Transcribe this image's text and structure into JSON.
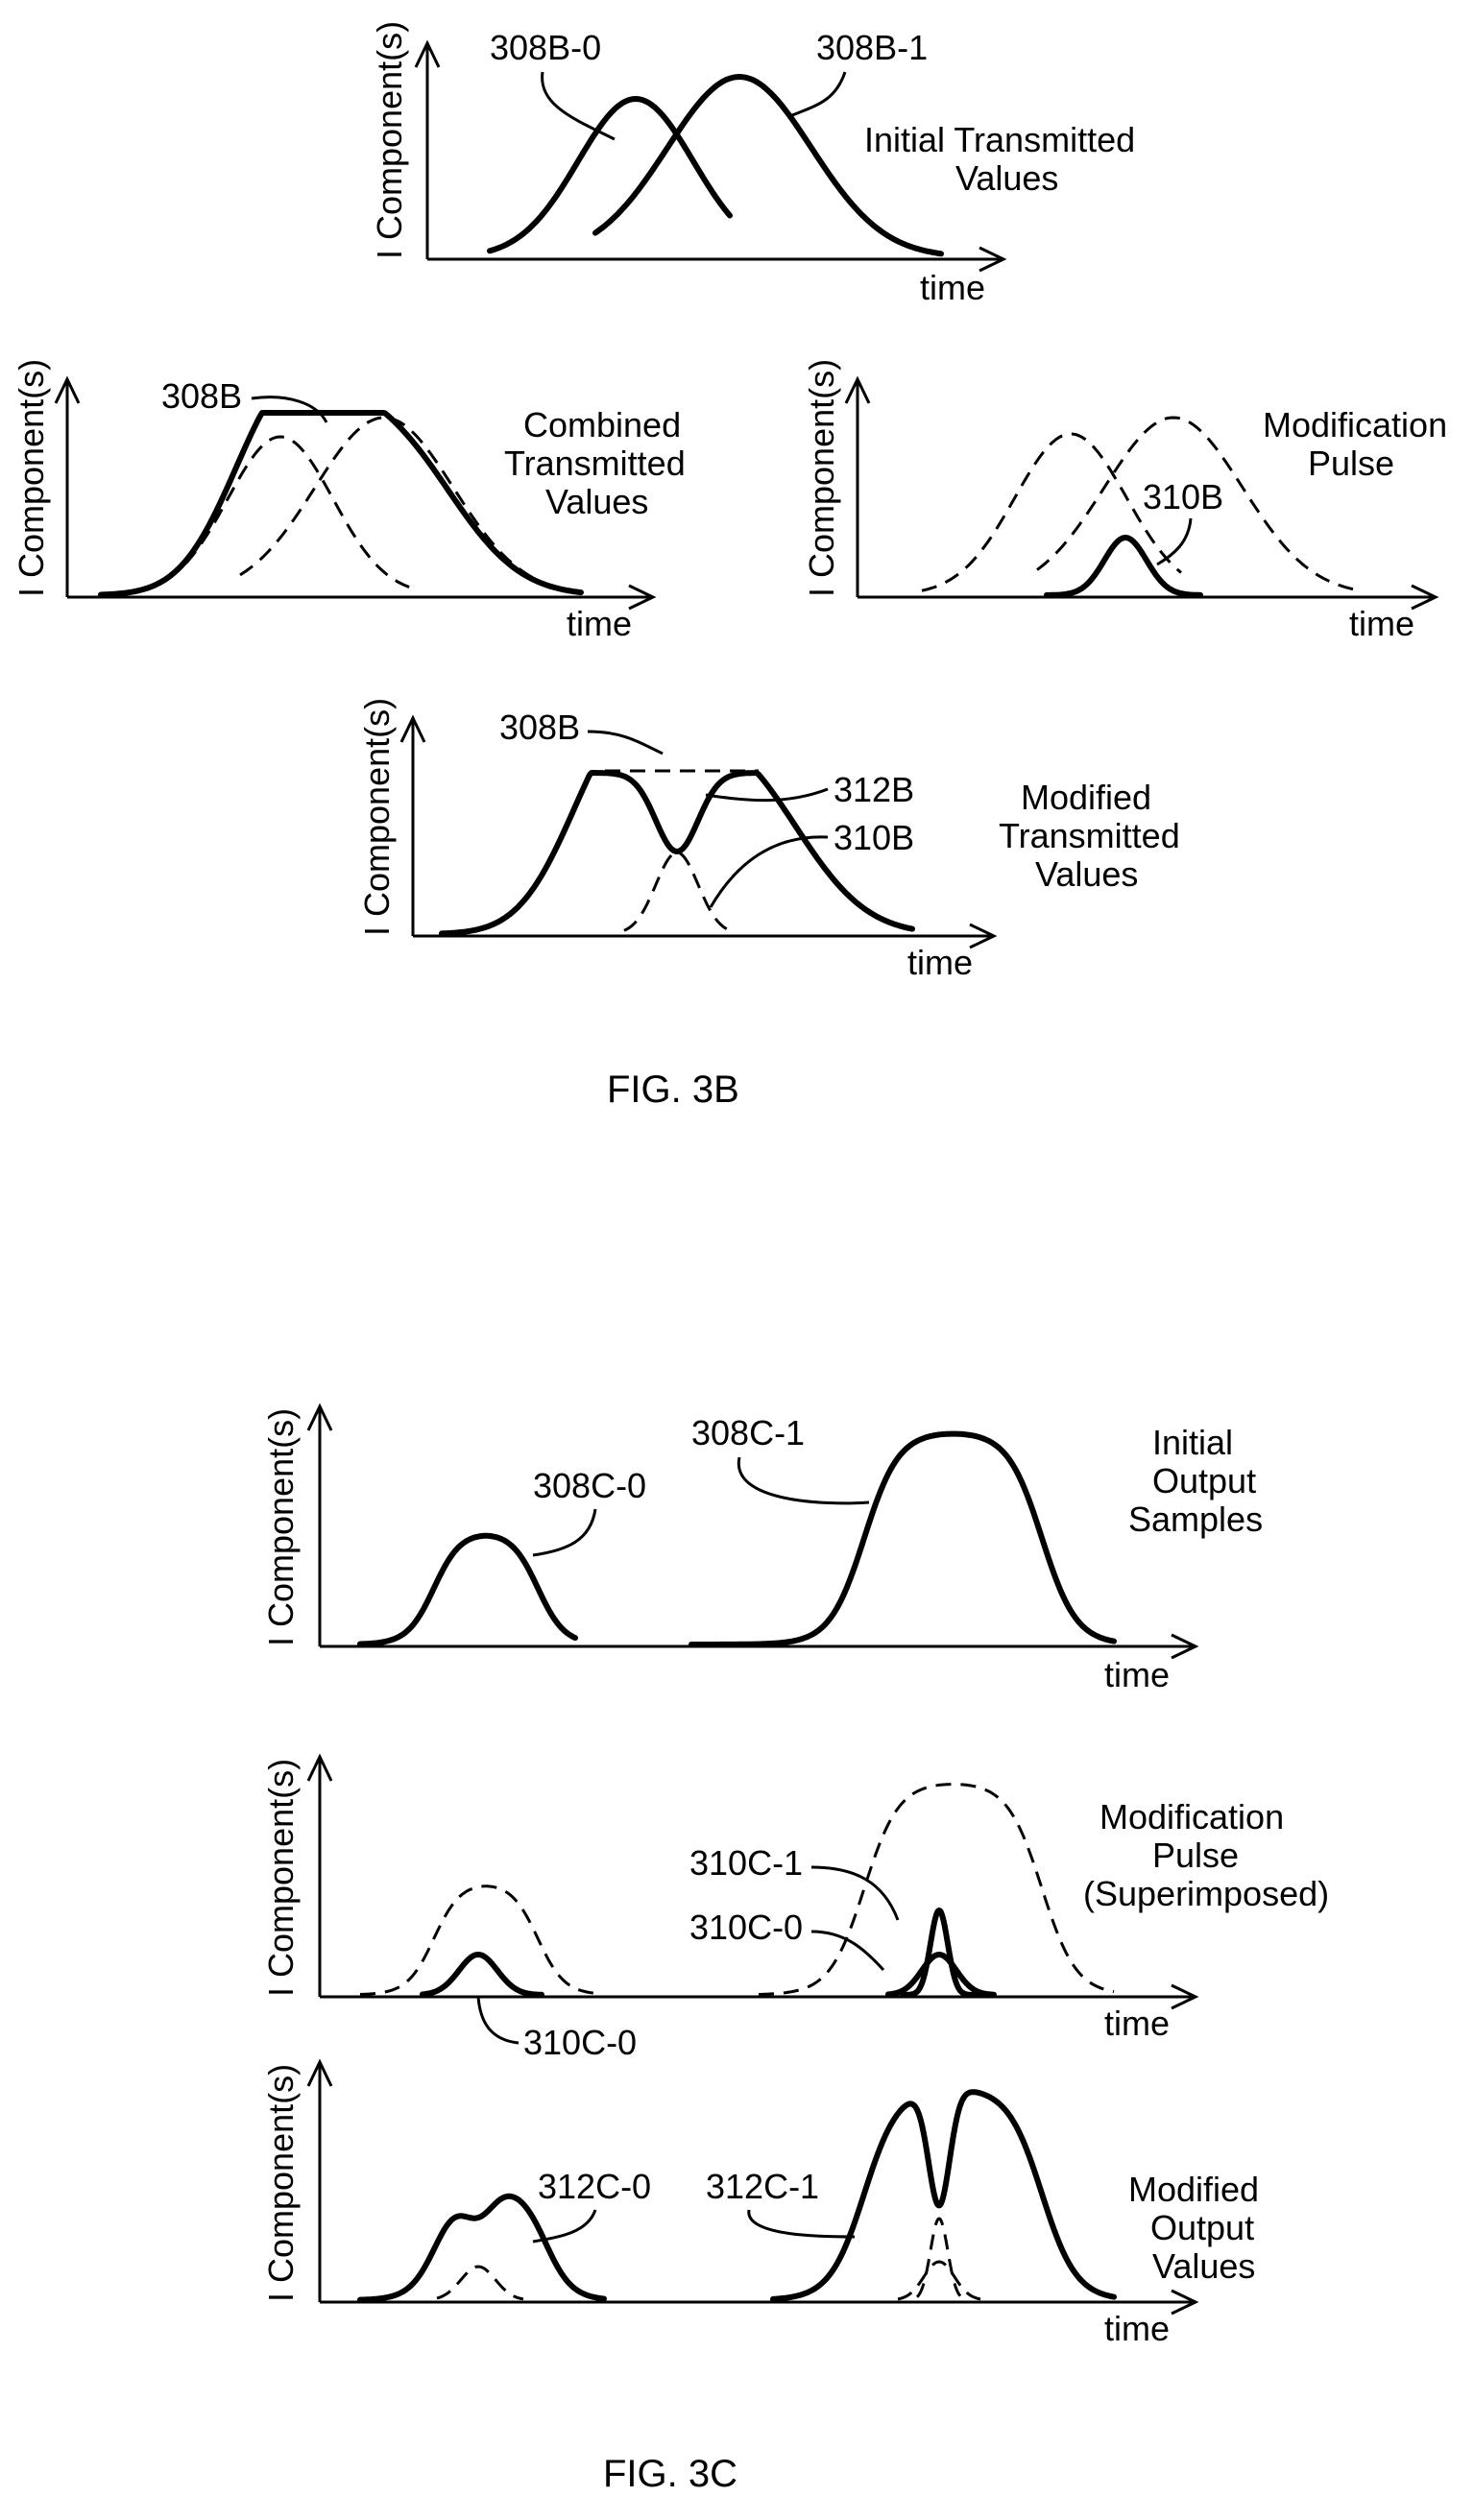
{
  "y_axis_label": "I Component(s)",
  "x_axis_label": "time",
  "fig3b": {
    "caption": "FIG. 3B",
    "panel_initial": {
      "label_left": "308B-0",
      "label_right": "308B-1",
      "title_lines": [
        "Initial Transmitted",
        "Values"
      ]
    },
    "panel_combined": {
      "label": "308B",
      "title_lines": [
        "Combined",
        "Transmitted",
        "Values"
      ]
    },
    "panel_modification": {
      "label": "310B",
      "title_lines": [
        "Modification",
        "Pulse"
      ]
    },
    "panel_modified": {
      "label_combined": "308B",
      "label_modified": "312B",
      "label_pulse": "310B",
      "title_lines": [
        "Modified",
        "Transmitted",
        "Values"
      ]
    }
  },
  "fig3c": {
    "caption": "FIG. 3C",
    "panel_initial": {
      "label_left": "308C-0",
      "label_right": "308C-1",
      "title_lines": [
        "Initial",
        "Output",
        "Samples"
      ]
    },
    "panel_modification": {
      "label_pulse1": "310C-1",
      "label_pulse0_right": "310C-0",
      "label_pulse0_left": "310C-0",
      "title_lines": [
        "Modification",
        "Pulse",
        "(Superimposed)"
      ]
    },
    "panel_modified": {
      "label_left": "312C-0",
      "label_right": "312C-1",
      "title_lines": [
        "Modified",
        "Output",
        "Values"
      ]
    }
  }
}
